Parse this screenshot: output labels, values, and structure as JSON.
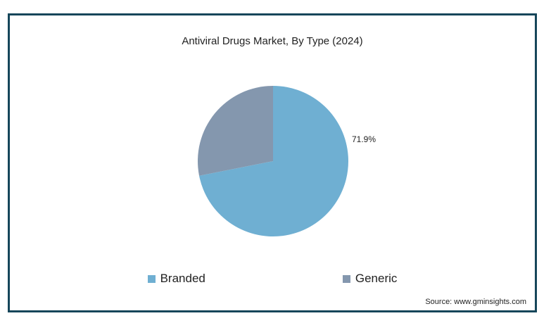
{
  "chart_data": {
    "type": "pie",
    "title": "Antiviral Drugs Market, By Type (2024)",
    "categories": [
      "Branded",
      "Generic"
    ],
    "values": [
      71.9,
      28.1
    ],
    "colors": [
      "#6fafd2",
      "#8497ae"
    ],
    "data_labels": [
      "71.9%",
      ""
    ],
    "legend_position": "bottom"
  },
  "source": "Source: www.gminsights.com"
}
